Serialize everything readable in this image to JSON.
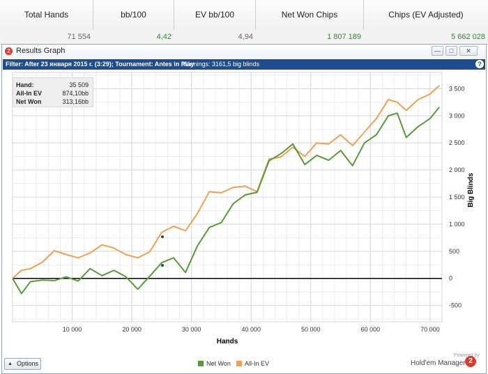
{
  "stats": {
    "headers": [
      "Total Hands",
      "bb/100",
      "EV bb/100",
      "Net Won Chips",
      "Chips (EV Adjusted)"
    ],
    "values": [
      "71 554",
      "4,42",
      "4,94",
      "1 807 189",
      "5 662 028"
    ]
  },
  "window": {
    "title": "Results Graph",
    "filter": "Filter: After 23 января 2015 г. (3:29); Tournament: Antes in Play",
    "winnings": "Winnings: 3161,5 big blinds"
  },
  "info_box": {
    "hand_label": "Hand:",
    "hand_value": "35 509",
    "ev_label": "All-In EV",
    "ev_value": "874,10bb",
    "net_label": "Net Won",
    "net_value": "313,16bb"
  },
  "footer": {
    "options_label": "Options",
    "legend_net": "Net Won",
    "legend_ev": "All-In EV",
    "powered_by": "Powered by",
    "brand": "Hold'em Manager"
  },
  "colors": {
    "net_won": "#5a9a36",
    "all_in_ev": "#f0a050",
    "positive": "#2e8b2e",
    "title_bar": "#1e4d8f"
  },
  "icons": [
    "app-logo-icon",
    "minimize-icon",
    "maximize-icon",
    "close-icon",
    "help-icon",
    "options-arrow-icon",
    "brand-logo-icon"
  ],
  "chart_data": {
    "type": "line",
    "xlabel": "Hands",
    "ylabel": "Big Blinds",
    "xlim": [
      0,
      72000
    ],
    "ylim": [
      -800,
      3800
    ],
    "xticks": [
      10000,
      20000,
      30000,
      40000,
      50000,
      60000,
      70000
    ],
    "xtick_labels": [
      "10 000",
      "20 000",
      "30 000",
      "40 000",
      "50 000",
      "60 000",
      "70 000"
    ],
    "yticks": [
      -500,
      0,
      500,
      1000,
      1500,
      2000,
      2500,
      3000,
      3500
    ],
    "ytick_labels": [
      "-500",
      "0",
      "500",
      "1 000",
      "1 500",
      "2 000",
      "2 500",
      "3 000",
      "3 500"
    ],
    "grid": true,
    "legend_position": "bottom-center",
    "series": [
      {
        "name": "Net Won",
        "x": [
          0,
          1500,
          3000,
          5000,
          7000,
          9000,
          11000,
          13000,
          15000,
          17000,
          19000,
          21000,
          23000,
          25000,
          27000,
          29000,
          31000,
          33000,
          35000,
          37000,
          39000,
          41000,
          43000,
          45000,
          47000,
          49000,
          51000,
          53000,
          55000,
          57000,
          59000,
          61000,
          63000,
          64500,
          66000,
          68000,
          70000,
          71554
        ],
        "y": [
          0,
          -280,
          -60,
          -30,
          -40,
          30,
          -50,
          180,
          50,
          150,
          30,
          -200,
          40,
          290,
          380,
          110,
          600,
          940,
          1030,
          1380,
          1540,
          1590,
          2170,
          2300,
          2480,
          2100,
          2270,
          2180,
          2360,
          2080,
          2500,
          2650,
          3000,
          3050,
          2600,
          2800,
          2950,
          3160
        ]
      },
      {
        "name": "All-In EV",
        "x": [
          0,
          1500,
          3000,
          5000,
          7000,
          9000,
          11000,
          13000,
          15000,
          17000,
          19000,
          21000,
          23000,
          25000,
          27000,
          29000,
          31000,
          33000,
          35000,
          37000,
          39000,
          41000,
          43000,
          45000,
          47000,
          49000,
          51000,
          53000,
          55000,
          57000,
          59000,
          61000,
          63000,
          64500,
          66000,
          68000,
          70000,
          71554
        ],
        "y": [
          0,
          150,
          180,
          300,
          510,
          440,
          380,
          470,
          620,
          560,
          440,
          380,
          490,
          850,
          960,
          880,
          1200,
          1600,
          1580,
          1680,
          1700,
          1600,
          2200,
          2240,
          2420,
          2250,
          2500,
          2480,
          2650,
          2450,
          2700,
          2950,
          3300,
          3250,
          3100,
          3300,
          3400,
          3560
        ]
      }
    ]
  }
}
